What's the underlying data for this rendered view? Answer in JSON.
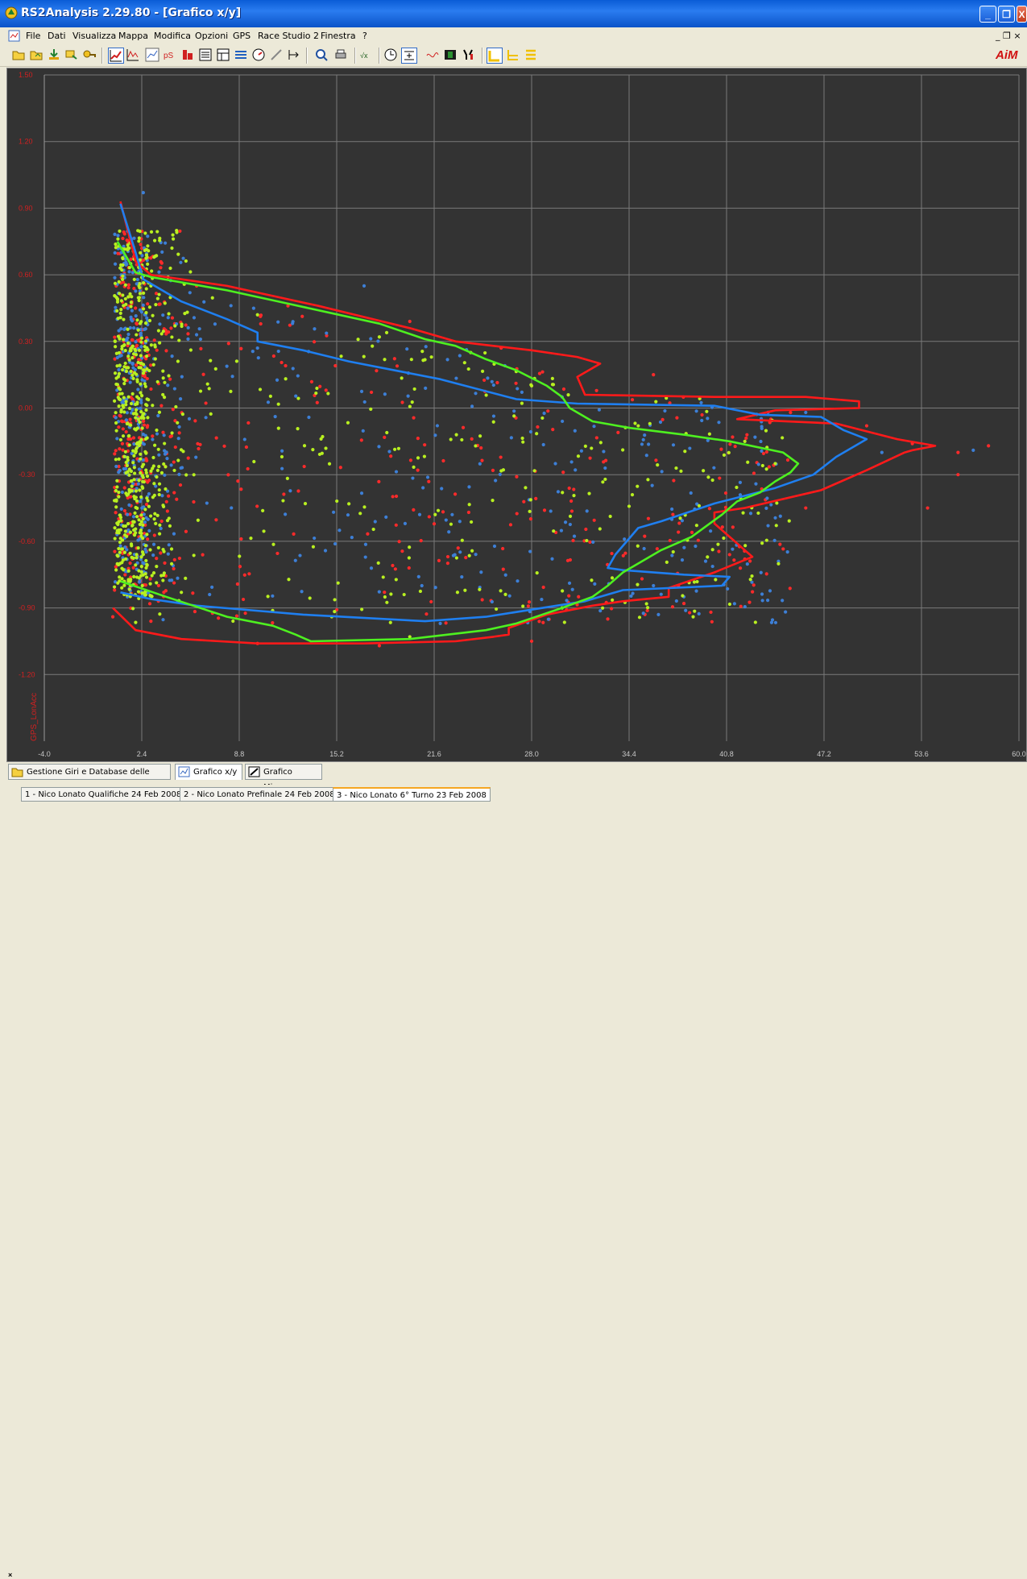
{
  "window": {
    "title": "RS2Analysis 2.29.80 - [Grafico x/y]",
    "min_label": "_",
    "max_label": "❐",
    "close_label": "X"
  },
  "menu": {
    "items": [
      "File",
      "Dati",
      "Visualizza",
      "Mappa",
      "Modifica",
      "Opzioni",
      "GPS",
      "Race Studio 2",
      "Finestra",
      "?"
    ],
    "child_controls": "_ ❐ ×"
  },
  "brand": {
    "logo_text": "AiM"
  },
  "tabs": {
    "items": [
      "Gestione Giri e Database delle prove",
      "Grafico x/y",
      "Grafico Misure"
    ]
  },
  "runs": {
    "items": [
      "1 - Nico Lonato Qualifiche 24 Feb 2008",
      "2 - Nico Lonato Prefinale 24 Feb 2008",
      "3 - Nico Lonato 6° Turno 23 Feb 2008"
    ],
    "close_label": "×"
  },
  "chart_data": {
    "type": "scatter",
    "ylabel": "GPS_LonAcc",
    "xlabel": "",
    "x_ticks": [
      "-4.0",
      "2.4",
      "8.8",
      "15.2",
      "21.6",
      "28.0",
      "34.4",
      "40.8",
      "47.2",
      "53.6",
      "60.0"
    ],
    "y_ticks": [
      "1.50",
      "1.20",
      "0.90",
      "0.60",
      "0.30",
      "0.00",
      "-0.30",
      "-0.60",
      "-0.90",
      "-1.20"
    ],
    "xlim": [
      -4.0,
      60.0
    ],
    "ylim": [
      -1.5,
      1.5
    ],
    "grid": true,
    "colors": {
      "background": "#333333",
      "grid": "#7a7a7a",
      "tick_labels": "#c8c8c8",
      "y_tick_labels": "#d22020",
      "ylabel": "#d22020"
    },
    "series": [
      {
        "color": "#ff1a1a",
        "envelope": [
          [
            1.0,
            0.93
          ],
          [
            2.0,
            0.66
          ],
          [
            3.0,
            0.6
          ],
          [
            8.0,
            0.55
          ],
          [
            14.0,
            0.46
          ],
          [
            20.0,
            0.36
          ],
          [
            23.0,
            0.3
          ],
          [
            28.0,
            0.26
          ],
          [
            31.0,
            0.23
          ],
          [
            32.5,
            0.2
          ],
          [
            31.0,
            0.14
          ],
          [
            31.5,
            0.06
          ],
          [
            40.0,
            0.05
          ],
          [
            46.0,
            0.05
          ],
          [
            49.5,
            0.03
          ],
          [
            49.5,
            0.0
          ],
          [
            44.0,
            -0.01
          ],
          [
            41.5,
            -0.05
          ],
          [
            48.0,
            -0.07
          ],
          [
            52.0,
            -0.14
          ],
          [
            54.5,
            -0.17
          ],
          [
            53.0,
            -0.19
          ],
          [
            52.5,
            -0.2
          ],
          [
            50.0,
            -0.28
          ],
          [
            47.0,
            -0.37
          ],
          [
            42.0,
            -0.45
          ],
          [
            40.0,
            -0.47
          ],
          [
            40.0,
            -0.52
          ],
          [
            42.5,
            -0.67
          ],
          [
            40.0,
            -0.74
          ],
          [
            37.0,
            -0.81
          ],
          [
            37.0,
            -0.85
          ],
          [
            34.0,
            -0.87
          ],
          [
            32.0,
            -0.89
          ],
          [
            29.0,
            -0.93
          ],
          [
            26.5,
            -0.99
          ],
          [
            26.5,
            -1.02
          ],
          [
            25.5,
            -1.03
          ],
          [
            23.0,
            -1.05
          ],
          [
            17.0,
            -1.06
          ],
          [
            10.0,
            -1.06
          ],
          [
            5.0,
            -1.04
          ],
          [
            2.0,
            -1.0
          ],
          [
            0.5,
            -0.9
          ]
        ],
        "points": [
          [
            6,
            0.55
          ],
          [
            12,
            0.46
          ],
          [
            20,
            0.39
          ],
          [
            26,
            0.27
          ],
          [
            36,
            0.15
          ],
          [
            45,
            -0.02
          ],
          [
            50,
            -0.08
          ],
          [
            53,
            -0.16
          ],
          [
            58,
            -0.17
          ],
          [
            56,
            -0.2
          ],
          [
            56,
            -0.3
          ],
          [
            54,
            -0.45
          ],
          [
            46,
            -0.45
          ],
          [
            41,
            -0.66
          ],
          [
            42,
            -0.68
          ],
          [
            38,
            -0.88
          ],
          [
            33,
            -0.95
          ],
          [
            28,
            -1.05
          ],
          [
            18,
            -1.07
          ],
          [
            10,
            -1.06
          ],
          [
            3,
            -0.96
          ],
          [
            0.5,
            -0.94
          ]
        ]
      },
      {
        "color": "#1f7ff0",
        "envelope": [
          [
            1.0,
            0.92
          ],
          [
            2.0,
            0.7
          ],
          [
            2.5,
            0.58
          ],
          [
            5.0,
            0.48
          ],
          [
            8.0,
            0.4
          ],
          [
            10.0,
            0.34
          ],
          [
            10.0,
            0.3
          ],
          [
            13.0,
            0.26
          ],
          [
            16.0,
            0.21
          ],
          [
            22.0,
            0.13
          ],
          [
            27.0,
            0.04
          ],
          [
            31.0,
            0.02
          ],
          [
            40.0,
            0.01
          ],
          [
            43.0,
            -0.03
          ],
          [
            47.0,
            -0.04
          ],
          [
            48.5,
            -0.1
          ],
          [
            50.0,
            -0.14
          ],
          [
            48.0,
            -0.22
          ],
          [
            46.5,
            -0.3
          ],
          [
            44.0,
            -0.36
          ],
          [
            40.0,
            -0.43
          ],
          [
            36.5,
            -0.51
          ],
          [
            35.0,
            -0.54
          ],
          [
            34.5,
            -0.58
          ],
          [
            33.5,
            -0.66
          ],
          [
            33.0,
            -0.72
          ],
          [
            34.0,
            -0.73
          ],
          [
            38.0,
            -0.75
          ],
          [
            41.0,
            -0.76
          ],
          [
            40.5,
            -0.8
          ],
          [
            34.0,
            -0.82
          ],
          [
            31.5,
            -0.87
          ],
          [
            25.0,
            -0.94
          ],
          [
            21.0,
            -0.96
          ],
          [
            13.0,
            -0.93
          ],
          [
            6.0,
            -0.89
          ],
          [
            3.0,
            -0.86
          ],
          [
            1.0,
            -0.83
          ]
        ],
        "points": [
          [
            2.5,
            0.97
          ],
          [
            6,
            0.33
          ],
          [
            10,
            0.27
          ],
          [
            17,
            0.55
          ],
          [
            30,
            0.05
          ],
          [
            46,
            -0.02
          ],
          [
            51,
            -0.2
          ],
          [
            57,
            -0.19
          ],
          [
            38,
            -0.85
          ],
          [
            36,
            -0.8
          ],
          [
            22,
            -0.97
          ],
          [
            3,
            -0.85
          ]
        ]
      },
      {
        "color": "#4ef020",
        "envelope": [
          [
            0.8,
            0.75
          ],
          [
            2.0,
            0.61
          ],
          [
            3.0,
            0.59
          ],
          [
            8.0,
            0.53
          ],
          [
            12.0,
            0.47
          ],
          [
            18.0,
            0.38
          ],
          [
            21.0,
            0.31
          ],
          [
            23.0,
            0.28
          ],
          [
            25.0,
            0.22
          ],
          [
            27.0,
            0.17
          ],
          [
            29.0,
            0.1
          ],
          [
            30.0,
            0.05
          ],
          [
            30.5,
            0.0
          ],
          [
            32.0,
            -0.06
          ],
          [
            34.5,
            -0.09
          ],
          [
            38.0,
            -0.12
          ],
          [
            41.0,
            -0.15
          ],
          [
            44.5,
            -0.2
          ],
          [
            45.5,
            -0.25
          ],
          [
            45.0,
            -0.29
          ],
          [
            44.0,
            -0.33
          ],
          [
            43.0,
            -0.38
          ],
          [
            41.5,
            -0.42
          ],
          [
            40.5,
            -0.48
          ],
          [
            38.5,
            -0.58
          ],
          [
            36.5,
            -0.64
          ],
          [
            35.0,
            -0.7
          ],
          [
            34.0,
            -0.74
          ],
          [
            33.0,
            -0.8
          ],
          [
            32.0,
            -0.85
          ],
          [
            30.0,
            -0.9
          ],
          [
            27.0,
            -0.97
          ],
          [
            25.0,
            -1.0
          ],
          [
            20.0,
            -1.04
          ],
          [
            13.5,
            -1.05
          ],
          [
            12.5,
            -1.02
          ],
          [
            11.0,
            -0.98
          ],
          [
            8.0,
            -0.94
          ],
          [
            4.0,
            -0.85
          ],
          [
            1.0,
            -0.78
          ]
        ],
        "points": [
          [
            1.5,
            0.72
          ],
          [
            3,
            0.55
          ],
          [
            10,
            0.42
          ],
          [
            18,
            0.32
          ],
          [
            24,
            0.25
          ],
          [
            28,
            0.1
          ],
          [
            35,
            -0.08
          ],
          [
            42,
            -0.15
          ],
          [
            44,
            -0.25
          ],
          [
            30,
            -0.9
          ],
          [
            20,
            -1.03
          ],
          [
            5,
            -0.83
          ]
        ]
      }
    ]
  }
}
